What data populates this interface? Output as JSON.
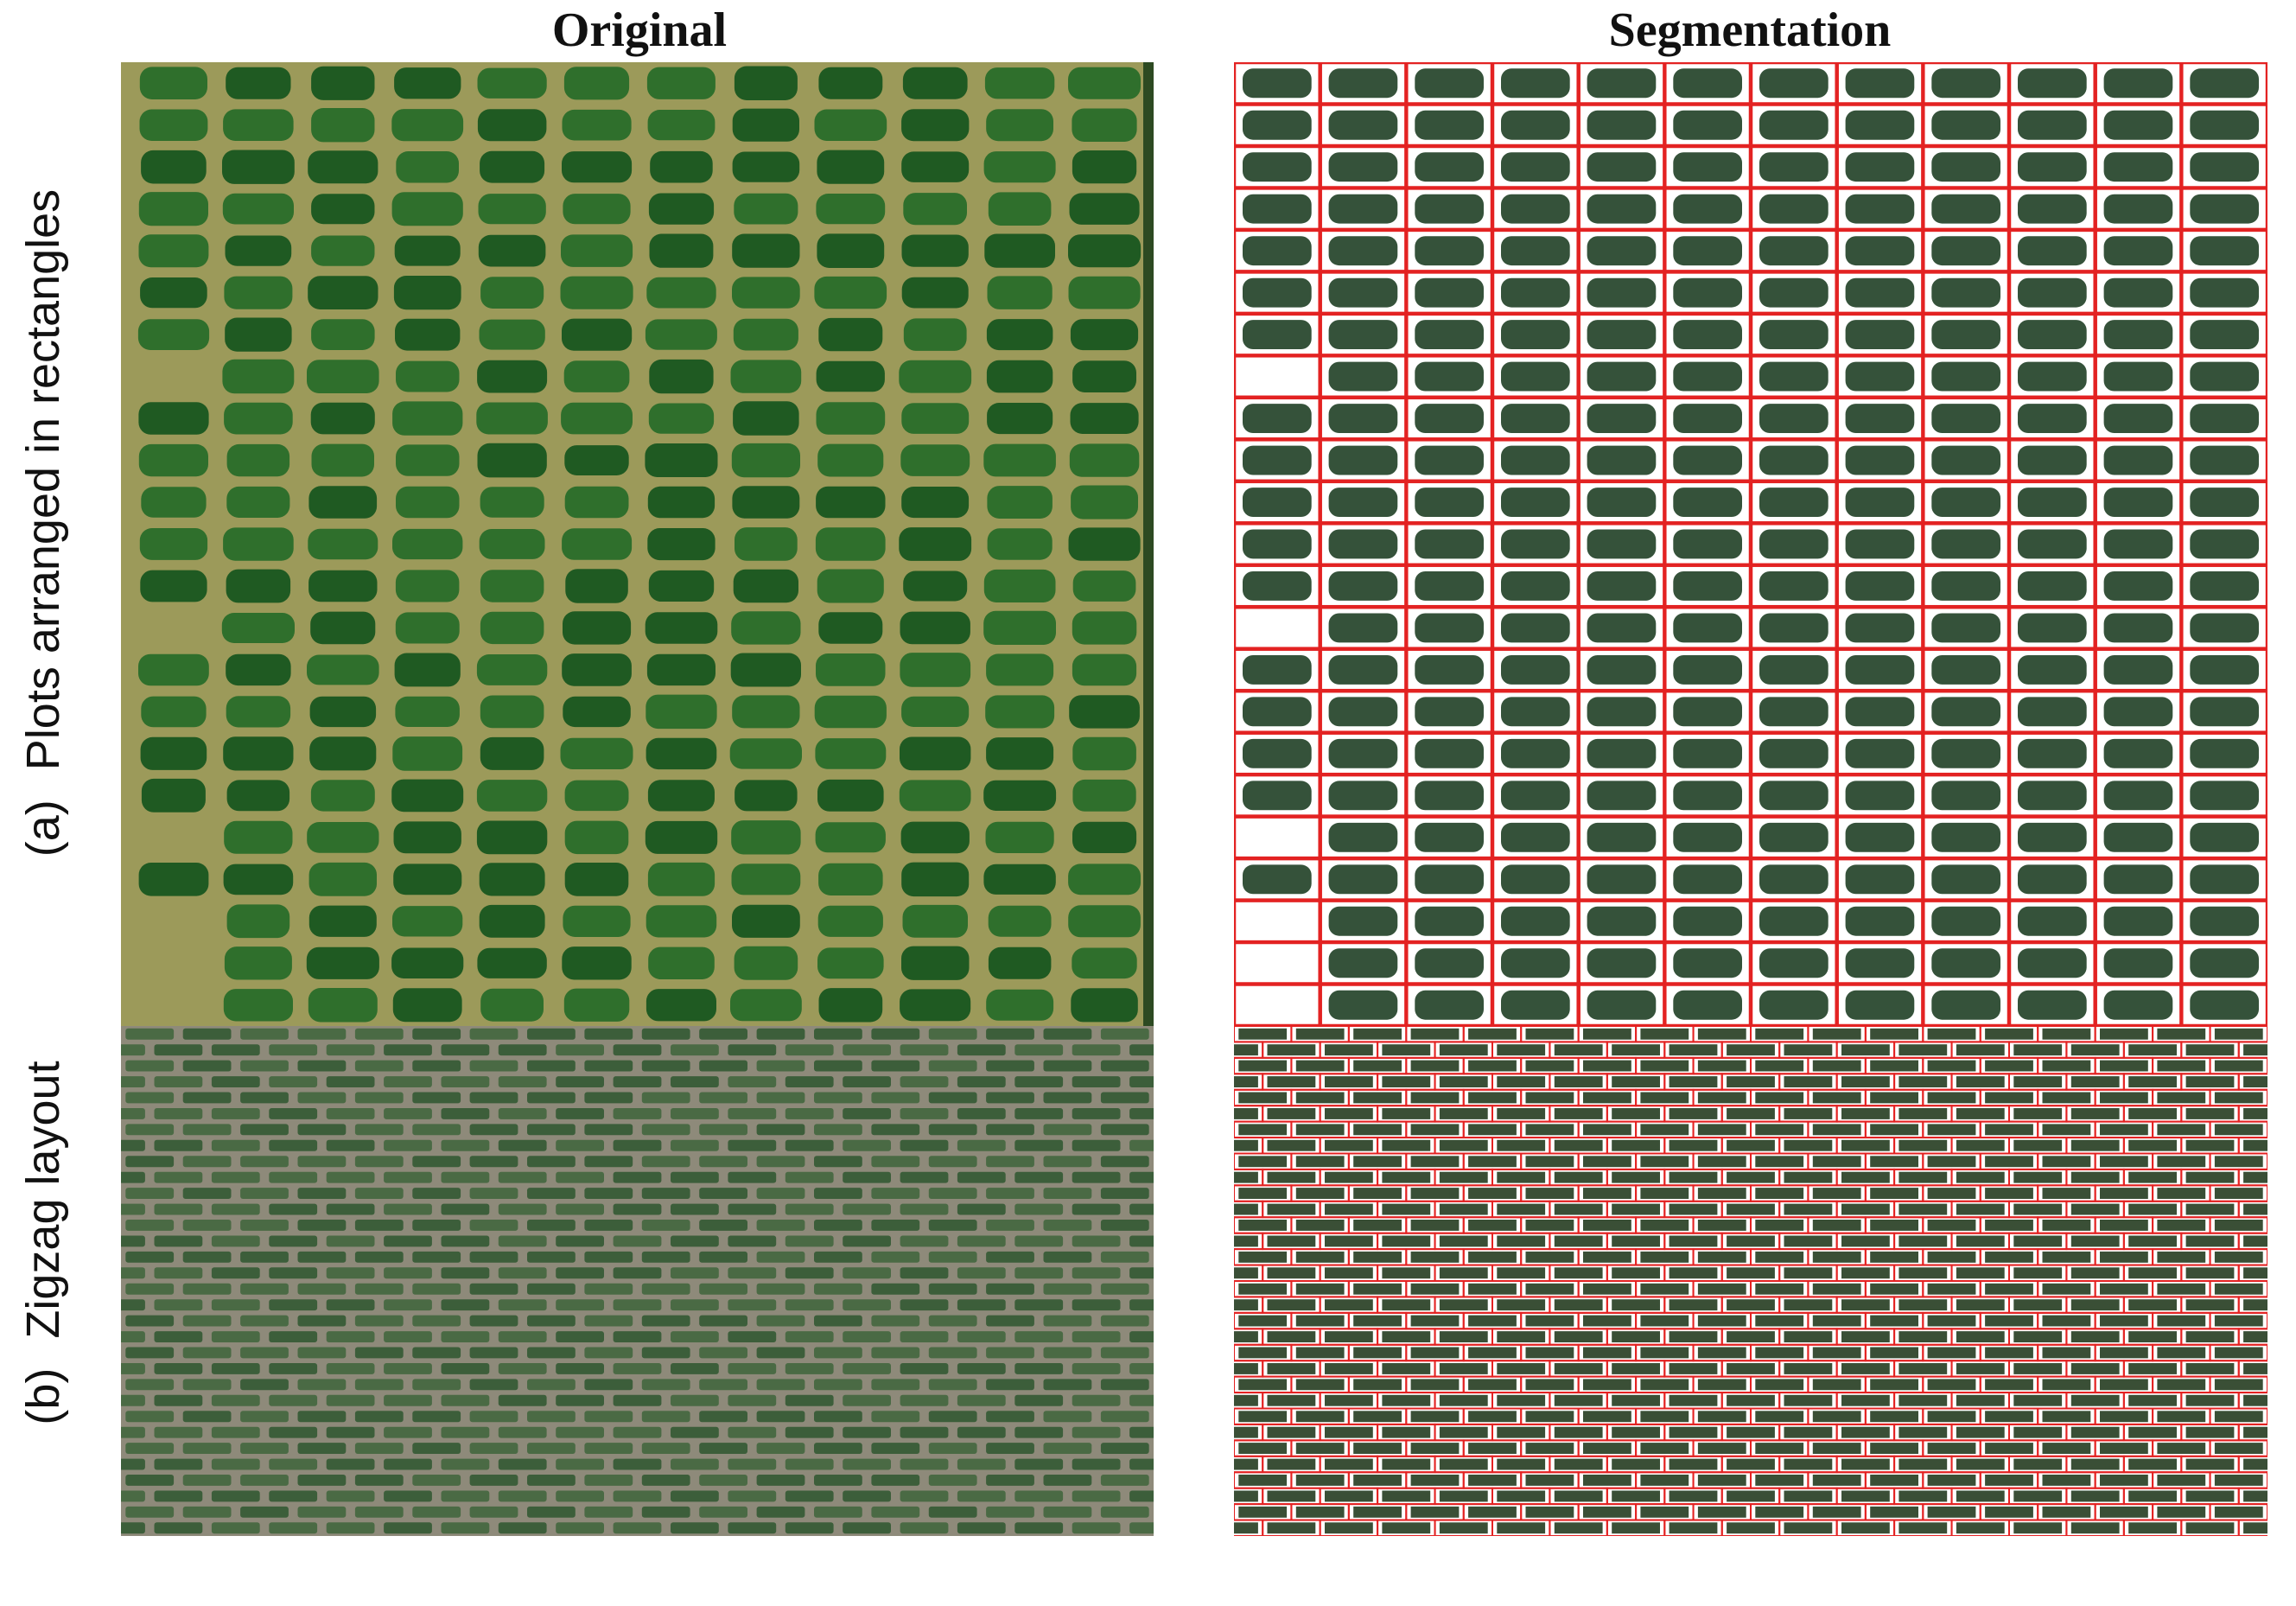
{
  "columns": {
    "left_title": "Original",
    "right_title": "Segmentation"
  },
  "rows": [
    {
      "letter": "(a)",
      "label": "Plots arranged in rectangles"
    },
    {
      "letter": "(b)",
      "label": "Zigzag layout"
    }
  ],
  "colors": {
    "field_soil_a": "#9c9a5a",
    "plant_dark": "#1f5a22",
    "plant_mid": "#2f6f2c",
    "field_soil_b": "#8e8a7a",
    "plot_b": "#3c5e3a",
    "segment_box": "#e32222",
    "segment_fill": "#1f3f25"
  }
}
